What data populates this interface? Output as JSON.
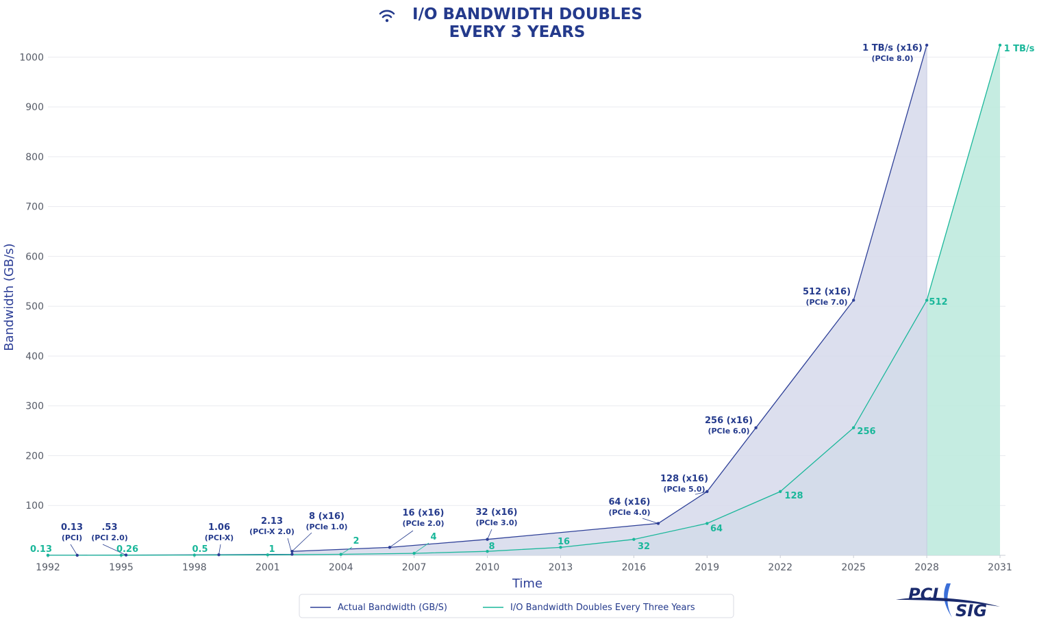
{
  "chart_data": {
    "type": "area",
    "title": [
      "I/O BANDWIDTH DOUBLES",
      "EVERY 3 YEARS"
    ],
    "xlabel": "Time",
    "ylabel": "Bandwidth (GB/s)",
    "xlim": [
      1992,
      2031
    ],
    "ylim": [
      0,
      1050
    ],
    "x_ticks": [
      "1992",
      "1995",
      "1998",
      "2001",
      "2004",
      "2007",
      "2010",
      "2013",
      "2016",
      "2019",
      "2022",
      "2025",
      "2028",
      "2031"
    ],
    "y_ticks": [
      "100",
      "200",
      "300",
      "400",
      "500",
      "600",
      "700",
      "800",
      "900",
      "1000"
    ],
    "grid": true,
    "legend": "bottom-center",
    "series": [
      {
        "name": "Actual Bandwidth (GB/S)",
        "color": "#2d3f97",
        "fill": "#d6d9eb",
        "points": [
          {
            "x": 1992,
            "y": 0.13
          },
          {
            "x": 1993.2,
            "y": 0.13,
            "label": "0.13",
            "sub": "(PCI)"
          },
          {
            "x": 1995.2,
            "y": 0.53,
            "label": ".53",
            "sub": "(PCI 2.0)"
          },
          {
            "x": 1999,
            "y": 1.06,
            "label": "1.06",
            "sub": "(PCI-X)"
          },
          {
            "x": 2002,
            "y": 2.13,
            "label": "2.13",
            "sub": "(PCI-X 2.0)"
          },
          {
            "x": 2002,
            "y": 8,
            "label": "8 (x16)",
            "sub": "(PCIe 1.0)"
          },
          {
            "x": 2006,
            "y": 16,
            "label": "16 (x16)",
            "sub": "(PCIe 2.0)"
          },
          {
            "x": 2010,
            "y": 32,
            "label": "32 (x16)",
            "sub": "(PCIe 3.0)"
          },
          {
            "x": 2017,
            "y": 64,
            "label": "64 (x16)",
            "sub": "(PCIe 4.0)"
          },
          {
            "x": 2019,
            "y": 128,
            "label": "128 (x16)",
            "sub": "(PCIe 5.0)"
          },
          {
            "x": 2021,
            "y": 256,
            "label": "256 (x16)",
            "sub": "(PCIe 6.0)"
          },
          {
            "x": 2025,
            "y": 512,
            "label": "512 (x16)",
            "sub": "(PCIe 7.0)"
          },
          {
            "x": 2028,
            "y": 1024,
            "label": "1 TB/s (x16)",
            "sub": "(PCIe 8.0)"
          }
        ]
      },
      {
        "name": "I/O Bandwidth Doubles Every Three Years",
        "color": "#1ab79a",
        "fill": "#bfeade",
        "points": [
          {
            "x": 1992,
            "y": 0.13,
            "label": "0.13"
          },
          {
            "x": 1995,
            "y": 0.26,
            "label": "0.26"
          },
          {
            "x": 1998,
            "y": 0.5,
            "label": "0.5"
          },
          {
            "x": 2001,
            "y": 1,
            "label": "1"
          },
          {
            "x": 2004,
            "y": 2,
            "label": "2"
          },
          {
            "x": 2007,
            "y": 4,
            "label": "4"
          },
          {
            "x": 2010,
            "y": 8,
            "label": "8"
          },
          {
            "x": 2013,
            "y": 16,
            "label": "16"
          },
          {
            "x": 2016,
            "y": 32,
            "label": "32"
          },
          {
            "x": 2019,
            "y": 64,
            "label": "64"
          },
          {
            "x": 2022,
            "y": 128,
            "label": "128"
          },
          {
            "x": 2025,
            "y": 256,
            "label": "256"
          },
          {
            "x": 2028,
            "y": 512,
            "label": "512"
          },
          {
            "x": 2031,
            "y": 1024,
            "label": "1 TB/s"
          }
        ]
      }
    ]
  },
  "logo": {
    "line1": "PCI",
    "line2": "SIG"
  }
}
